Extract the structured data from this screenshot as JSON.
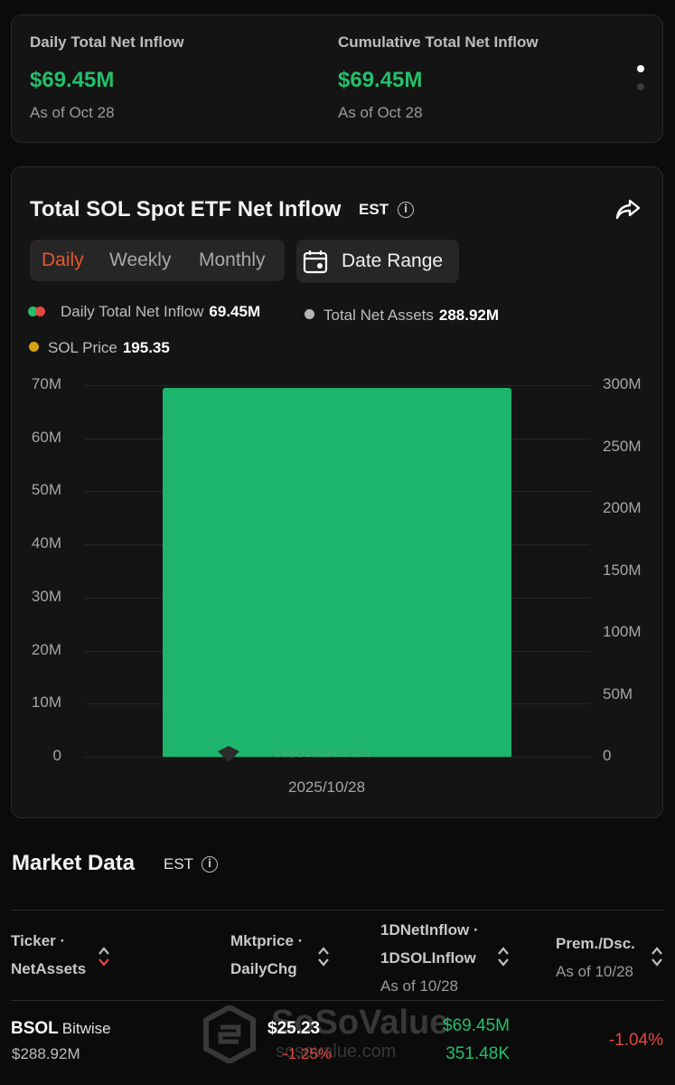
{
  "summary": {
    "daily": {
      "title": "Daily Total Net Inflow",
      "value": "$69.45M",
      "as_of": "As of Oct 28"
    },
    "cumulative": {
      "title": "Cumulative Total Net Inflow",
      "value": "$69.45M",
      "as_of": "As of Oct 28"
    },
    "pager_icon": "page-dots-icon"
  },
  "chart_card": {
    "title": "Total SOL Spot ETF Net Inflow",
    "timezone": "EST",
    "share_icon": "share-icon",
    "tabs": [
      {
        "label": "Daily",
        "active": true
      },
      {
        "label": "Weekly",
        "active": false
      },
      {
        "label": "Monthly",
        "active": false
      }
    ],
    "date_range_label": "Date Range",
    "legend": [
      {
        "label": "Daily Total Net Inflow",
        "value": "69.45M",
        "color": "#22c06a",
        "color2": "#e5483f"
      },
      {
        "label": "Total Net Assets",
        "value": "288.92M",
        "color": "#b5b5b5"
      },
      {
        "label": "SOL Price",
        "value": "195.35",
        "color": "#d4a017"
      }
    ],
    "watermark": "sosovalue.com"
  },
  "chart_data": {
    "type": "bar",
    "categories": [
      "2025/10/28"
    ],
    "series": [
      {
        "name": "Daily Total Net Inflow",
        "values": [
          69.45
        ],
        "color": "#1cb56b"
      }
    ],
    "y_left": {
      "ticks": [
        "0",
        "10M",
        "20M",
        "30M",
        "40M",
        "50M",
        "60M",
        "70M"
      ],
      "range": [
        0,
        70
      ]
    },
    "y_right": {
      "ticks": [
        "0",
        "50M",
        "100M",
        "150M",
        "200M",
        "250M",
        "300M"
      ],
      "range": [
        0,
        300
      ]
    },
    "grid": true
  },
  "market": {
    "title": "Market Data",
    "timezone": "EST",
    "columns": [
      {
        "line1": "Ticker ·",
        "line2": "NetAssets",
        "sub": ""
      },
      {
        "line1": "Mktprice ·",
        "line2": "DailyChg",
        "sub": ""
      },
      {
        "line1": "1DNetInflow ·",
        "line2": "1DSOLInflow",
        "sub": "As of 10/28"
      },
      {
        "line1": "Prem./Dsc.",
        "line2": "",
        "sub": "As of 10/28"
      }
    ],
    "rows": [
      {
        "ticker": "BSOL",
        "issuer": "Bitwise",
        "net_assets": "$288.92M",
        "price": "$25.23",
        "daily_chg": "-1.25%",
        "net_inflow": "$69.45M",
        "sol_inflow": "351.48K",
        "prem_dsc": "-1.04%"
      }
    ],
    "watermark": "SoSoValue",
    "watermark_url": "sosovalue.com"
  }
}
